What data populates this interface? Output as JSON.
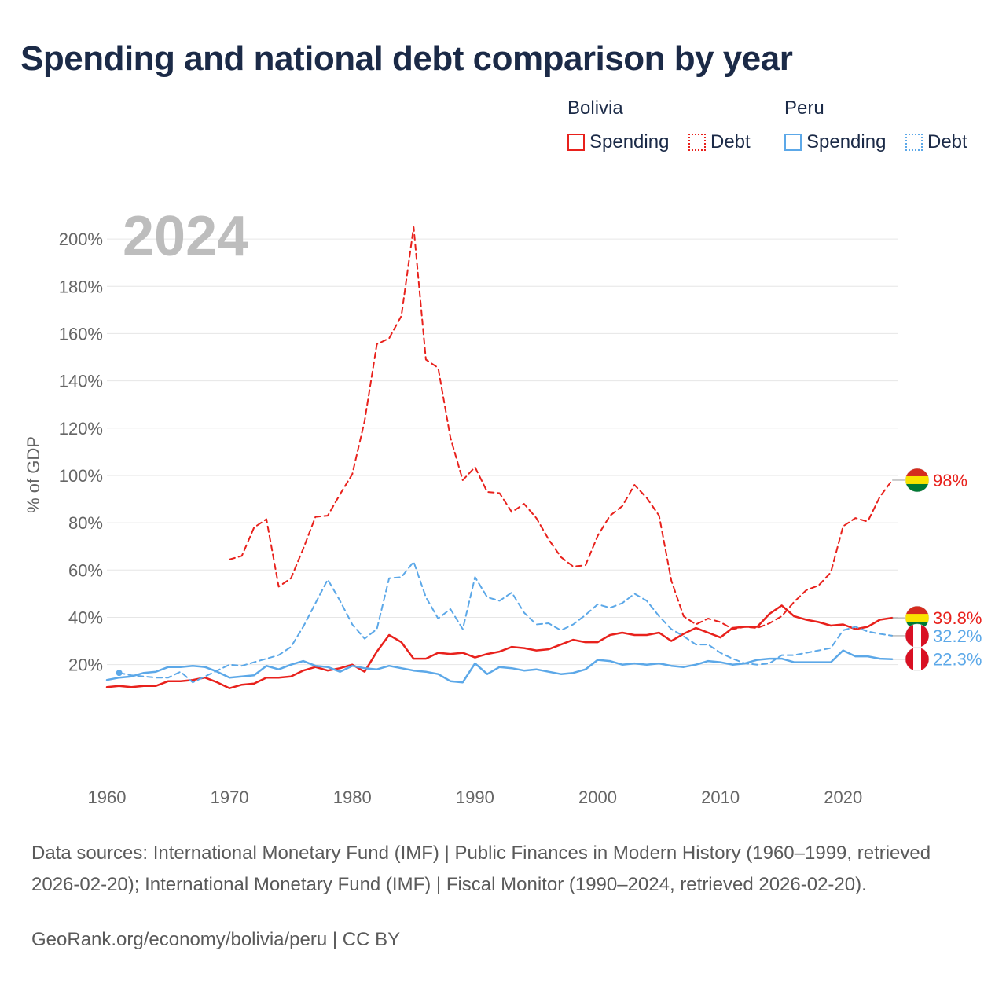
{
  "title": "Spending and national debt comparison by year",
  "legend": {
    "groups": [
      {
        "label": "Bolivia",
        "color": "#e8211c",
        "items": [
          {
            "label": "Spending",
            "style": "solid"
          },
          {
            "label": "Debt",
            "style": "dotted"
          }
        ]
      },
      {
        "label": "Peru",
        "color": "#5ca8e8",
        "items": [
          {
            "label": "Spending",
            "style": "solid"
          },
          {
            "label": "Debt",
            "style": "dotted"
          }
        ]
      }
    ]
  },
  "chart_data": {
    "type": "line",
    "year_label": "2024",
    "ylabel": "% of GDP",
    "xlabel": "",
    "xlim": [
      1960,
      2024.5
    ],
    "ylim": [
      -20,
      210
    ],
    "yticks": [
      20,
      40,
      60,
      80,
      100,
      120,
      140,
      160,
      180,
      200
    ],
    "ytick_labels": [
      "20%",
      "40%",
      "60%",
      "80%",
      "100%",
      "120%",
      "140%",
      "160%",
      "180%",
      "200%"
    ],
    "xticks": [
      1960,
      1970,
      1980,
      1990,
      2000,
      2010,
      2020
    ],
    "xtick_labels": [
      "1960",
      "1970",
      "1980",
      "1990",
      "2000",
      "2010",
      "2020"
    ],
    "series": [
      {
        "name": "Bolivia Debt",
        "country": "Bolivia",
        "kind": "Debt",
        "color": "#e8211c",
        "dash": "dashed",
        "end_label": "98%",
        "flag": "bolivia",
        "points": [
          [
            1970,
            64.5
          ],
          [
            1971,
            66
          ],
          [
            1972,
            78
          ],
          [
            1973,
            81.5
          ],
          [
            1974,
            53
          ],
          [
            1975,
            56.5
          ],
          [
            1976,
            69
          ],
          [
            1977,
            82.5
          ],
          [
            1978,
            83
          ],
          [
            1979,
            92
          ],
          [
            1980,
            100.5
          ],
          [
            1981,
            123
          ],
          [
            1982,
            155.5
          ],
          [
            1983,
            158
          ],
          [
            1984,
            167.5
          ],
          [
            1985,
            205
          ],
          [
            1986,
            149
          ],
          [
            1987,
            145.5
          ],
          [
            1988,
            116
          ],
          [
            1989,
            98
          ],
          [
            1990,
            103.5
          ],
          [
            1991,
            93
          ],
          [
            1992,
            92.5
          ],
          [
            1993,
            84.5
          ],
          [
            1994,
            88
          ],
          [
            1995,
            82
          ],
          [
            1996,
            73
          ],
          [
            1997,
            65.5
          ],
          [
            1998,
            61.5
          ],
          [
            1999,
            62
          ],
          [
            2000,
            74.5
          ],
          [
            2001,
            83
          ],
          [
            2002,
            87
          ],
          [
            2003,
            96
          ],
          [
            2004,
            90.5
          ],
          [
            2005,
            83
          ],
          [
            2006,
            55.5
          ],
          [
            2007,
            40.5
          ],
          [
            2008,
            37
          ],
          [
            2009,
            39.5
          ],
          [
            2010,
            38
          ],
          [
            2011,
            35
          ],
          [
            2012,
            36
          ],
          [
            2013,
            35.5
          ],
          [
            2014,
            37.5
          ],
          [
            2015,
            40.5
          ],
          [
            2016,
            46.5
          ],
          [
            2017,
            51.5
          ],
          [
            2018,
            53.5
          ],
          [
            2019,
            59
          ],
          [
            2020,
            78.5
          ],
          [
            2021,
            82
          ],
          [
            2022,
            80.5
          ],
          [
            2023,
            91
          ],
          [
            2024,
            98
          ]
        ]
      },
      {
        "name": "Bolivia Spending",
        "country": "Bolivia",
        "kind": "Spending",
        "color": "#e8211c",
        "dash": "solid",
        "end_label": "39.8%",
        "flag": "bolivia",
        "points": [
          [
            1960,
            10.5
          ],
          [
            1961,
            11
          ],
          [
            1962,
            10.5
          ],
          [
            1963,
            11
          ],
          [
            1964,
            11
          ],
          [
            1965,
            13
          ],
          [
            1966,
            13
          ],
          [
            1967,
            13.5
          ],
          [
            1968,
            14.5
          ],
          [
            1969,
            12.5
          ],
          [
            1970,
            10
          ],
          [
            1971,
            11.5
          ],
          [
            1972,
            12
          ],
          [
            1973,
            14.5
          ],
          [
            1974,
            14.5
          ],
          [
            1975,
            15
          ],
          [
            1976,
            17.5
          ],
          [
            1977,
            19
          ],
          [
            1978,
            17.5
          ],
          [
            1979,
            18.5
          ],
          [
            1980,
            20
          ],
          [
            1981,
            17
          ],
          [
            1982,
            25.5
          ],
          [
            1983,
            32.5
          ],
          [
            1984,
            29.5
          ],
          [
            1985,
            22.5
          ],
          [
            1986,
            22.5
          ],
          [
            1987,
            25
          ],
          [
            1988,
            24.5
          ],
          [
            1989,
            25
          ],
          [
            1990,
            23
          ],
          [
            1991,
            24.5
          ],
          [
            1992,
            25.5
          ],
          [
            1993,
            27.5
          ],
          [
            1994,
            27
          ],
          [
            1995,
            26
          ],
          [
            1996,
            26.5
          ],
          [
            1997,
            28.5
          ],
          [
            1998,
            30.5
          ],
          [
            1999,
            29.5
          ],
          [
            2000,
            29.5
          ],
          [
            2001,
            32.5
          ],
          [
            2002,
            33.5
          ],
          [
            2003,
            32.5
          ],
          [
            2004,
            32.5
          ],
          [
            2005,
            33.5
          ],
          [
            2006,
            30
          ],
          [
            2007,
            33
          ],
          [
            2008,
            35.5
          ],
          [
            2009,
            33.5
          ],
          [
            2010,
            31.5
          ],
          [
            2011,
            35.5
          ],
          [
            2012,
            36
          ],
          [
            2013,
            36
          ],
          [
            2014,
            41.5
          ],
          [
            2015,
            45
          ],
          [
            2016,
            40.5
          ],
          [
            2017,
            39
          ],
          [
            2018,
            38
          ],
          [
            2019,
            36.5
          ],
          [
            2020,
            37
          ],
          [
            2021,
            35
          ],
          [
            2022,
            36
          ],
          [
            2023,
            39
          ],
          [
            2024,
            39.8
          ]
        ]
      },
      {
        "name": "Peru Debt",
        "country": "Peru",
        "kind": "Debt",
        "color": "#5ca8e8",
        "dash": "dashed",
        "end_label": "32.2%",
        "flag": "peru",
        "points": [
          [
            1961,
            16.5
          ],
          [
            1962,
            15.5
          ],
          [
            1963,
            15
          ],
          [
            1964,
            14.5
          ],
          [
            1965,
            14.5
          ],
          [
            1966,
            17
          ],
          [
            1967,
            12.5
          ],
          [
            1968,
            15
          ],
          [
            1969,
            17.5
          ],
          [
            1970,
            20
          ],
          [
            1971,
            19.5
          ],
          [
            1972,
            21
          ],
          [
            1973,
            22.5
          ],
          [
            1974,
            24
          ],
          [
            1975,
            27.5
          ],
          [
            1976,
            36
          ],
          [
            1977,
            46
          ],
          [
            1978,
            56
          ],
          [
            1979,
            47
          ],
          [
            1980,
            37
          ],
          [
            1981,
            31
          ],
          [
            1982,
            35
          ],
          [
            1983,
            56.5
          ],
          [
            1984,
            57
          ],
          [
            1985,
            63.5
          ],
          [
            1986,
            48.5
          ],
          [
            1987,
            39.5
          ],
          [
            1988,
            43.5
          ],
          [
            1989,
            35
          ],
          [
            1990,
            57
          ],
          [
            1991,
            48.5
          ],
          [
            1992,
            47
          ],
          [
            1993,
            50.5
          ],
          [
            1994,
            42
          ],
          [
            1995,
            37
          ],
          [
            1996,
            37.5
          ],
          [
            1997,
            34.5
          ],
          [
            1998,
            37
          ],
          [
            1999,
            41
          ],
          [
            2000,
            45.5
          ],
          [
            2001,
            44
          ],
          [
            2002,
            46
          ],
          [
            2003,
            50
          ],
          [
            2004,
            47
          ],
          [
            2005,
            40.5
          ],
          [
            2006,
            35
          ],
          [
            2007,
            32
          ],
          [
            2008,
            28.5
          ],
          [
            2009,
            28.5
          ],
          [
            2010,
            25
          ],
          [
            2011,
            22.5
          ],
          [
            2012,
            20.5
          ],
          [
            2013,
            20
          ],
          [
            2014,
            20.5
          ],
          [
            2015,
            24
          ],
          [
            2016,
            24
          ],
          [
            2017,
            25
          ],
          [
            2018,
            26
          ],
          [
            2019,
            27
          ],
          [
            2020,
            34.5
          ],
          [
            2021,
            36
          ],
          [
            2022,
            34
          ],
          [
            2023,
            33
          ],
          [
            2024,
            32.2
          ]
        ]
      },
      {
        "name": "Peru Spending",
        "country": "Peru",
        "kind": "Spending",
        "color": "#5ca8e8",
        "dash": "solid",
        "end_label": "22.3%",
        "flag": "peru",
        "points": [
          [
            1960,
            13.5
          ],
          [
            1961,
            14.5
          ],
          [
            1962,
            15
          ],
          [
            1963,
            16.5
          ],
          [
            1964,
            17
          ],
          [
            1965,
            19
          ],
          [
            1966,
            19
          ],
          [
            1967,
            19.5
          ],
          [
            1968,
            19
          ],
          [
            1969,
            17
          ],
          [
            1970,
            14.5
          ],
          [
            1971,
            15
          ],
          [
            1972,
            15.5
          ],
          [
            1973,
            19.5
          ],
          [
            1974,
            18
          ],
          [
            1975,
            20
          ],
          [
            1976,
            21.5
          ],
          [
            1977,
            19.5
          ],
          [
            1978,
            19
          ],
          [
            1979,
            17
          ],
          [
            1980,
            19.5
          ],
          [
            1981,
            18.5
          ],
          [
            1982,
            18
          ],
          [
            1983,
            19.5
          ],
          [
            1984,
            18.5
          ],
          [
            1985,
            17.5
          ],
          [
            1986,
            17
          ],
          [
            1987,
            16
          ],
          [
            1988,
            13
          ],
          [
            1989,
            12.5
          ],
          [
            1990,
            20.5
          ],
          [
            1991,
            16
          ],
          [
            1992,
            19
          ],
          [
            1993,
            18.5
          ],
          [
            1994,
            17.5
          ],
          [
            1995,
            18
          ],
          [
            1996,
            17
          ],
          [
            1997,
            16
          ],
          [
            1998,
            16.5
          ],
          [
            1999,
            18
          ],
          [
            2000,
            22
          ],
          [
            2001,
            21.5
          ],
          [
            2002,
            20
          ],
          [
            2003,
            20.5
          ],
          [
            2004,
            20
          ],
          [
            2005,
            20.5
          ],
          [
            2006,
            19.5
          ],
          [
            2007,
            19
          ],
          [
            2008,
            20
          ],
          [
            2009,
            21.5
          ],
          [
            2010,
            21
          ],
          [
            2011,
            20
          ],
          [
            2012,
            20.5
          ],
          [
            2013,
            22
          ],
          [
            2014,
            22.5
          ],
          [
            2015,
            22.5
          ],
          [
            2016,
            21
          ],
          [
            2017,
            21
          ],
          [
            2018,
            21
          ],
          [
            2019,
            21
          ],
          [
            2020,
            26
          ],
          [
            2021,
            23.5
          ],
          [
            2022,
            23.5
          ],
          [
            2023,
            22.5
          ],
          [
            2024,
            22.3
          ]
        ]
      }
    ]
  },
  "flags": {
    "bolivia": [
      "#d52b1e",
      "#f9e300",
      "#007934"
    ],
    "peru": [
      "#d91023",
      "#ffffff",
      "#d91023"
    ]
  },
  "footer": {
    "sources": "Data sources: International Monetary Fund (IMF) | Public Finances in Modern History (1960–1999, retrieved 2026-02-20); International Monetary Fund (IMF) | Fiscal Monitor (1990–2024, retrieved 2026-02-20).",
    "link": "GeoRank.org/economy/bolivia/peru | CC BY"
  }
}
